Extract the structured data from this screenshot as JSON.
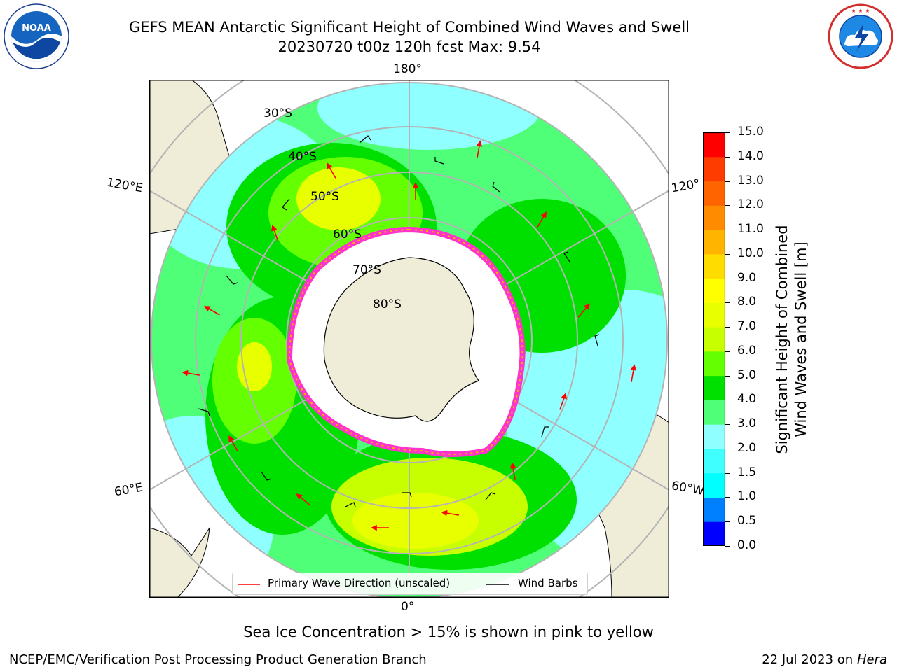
{
  "header": {
    "title": "GEFS MEAN Antarctic Significant Height of Combined Wind Waves and Swell",
    "subtitle": "20230720 t00z 120h fcst   Max: 9.54"
  },
  "logos": {
    "left": "noaa-logo",
    "left_text": "NOAA",
    "right": "nws-logo"
  },
  "map": {
    "projection": "south-polar-stereographic",
    "lon_labels": [
      "180°",
      "120°E",
      "120°",
      "60°E",
      "60°W",
      "0°"
    ],
    "lat_labels": [
      "30°S",
      "40°S",
      "50°S",
      "60°S",
      "70°S",
      "80°S"
    ],
    "colors": {
      "land": "#efecd8",
      "ice": "#ffffff",
      "ice_edge": "#ff33cc",
      "wave_arrow": "#ff0000",
      "wind_barb": "#000000",
      "grid": "#b4b4b4"
    }
  },
  "colorbar": {
    "label": "Significant Height of Combined Wind Waves and Swell [m]",
    "label_line1": "Significant Height of Combined",
    "label_line2": "Wind Waves and Swell [m]",
    "ticks": [
      "15.0",
      "14.0",
      "13.0",
      "12.0",
      "11.0",
      "10.0",
      "9.0",
      "8.0",
      "7.0",
      "6.0",
      "5.0",
      "4.0",
      "3.0",
      "2.0",
      "1.5",
      "1.0",
      "0.5",
      "0.0"
    ],
    "colors": [
      "#0000ff",
      "#0080ff",
      "#00ffff",
      "#40ffff",
      "#8fffff",
      "#50ff78",
      "#00e000",
      "#64ff00",
      "#c8ff00",
      "#e8ff00",
      "#ffff00",
      "#ffdc00",
      "#ffb400",
      "#ff8c00",
      "#ff6400",
      "#ff3c00",
      "#ff0000"
    ]
  },
  "legend": {
    "items": [
      {
        "label": "Primary Wave Direction (unscaled)",
        "color": "#ff0000"
      },
      {
        "label": "Wind Barbs",
        "color": "#000000"
      }
    ]
  },
  "note": "Sea Ice Concentration > 15% is shown in pink to yellow",
  "footer": {
    "left": "NCEP/EMC/Verification Post Processing Product Generation Branch",
    "right_prefix": "22 Jul 2023 on ",
    "right_host": "Hera"
  }
}
